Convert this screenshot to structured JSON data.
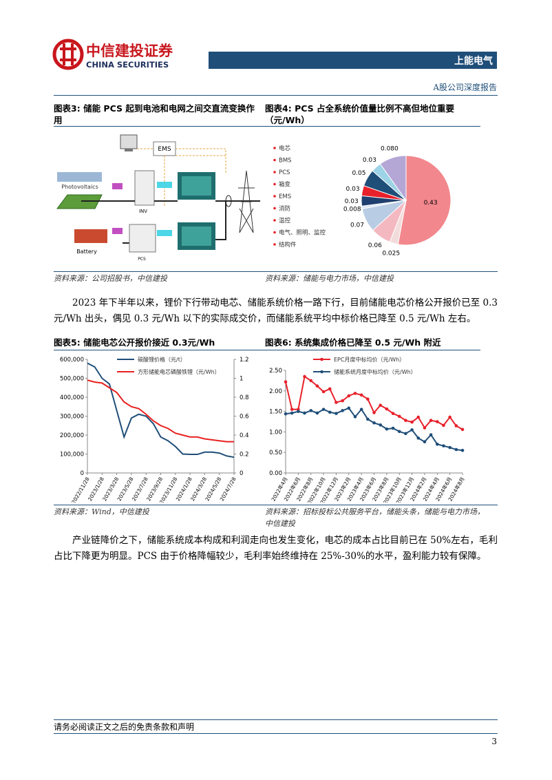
{
  "header": {
    "company": "中信建投证券",
    "company_en": "CHINA SECURITIES",
    "stock": "上能电气",
    "report_type": "A股公司深度报告"
  },
  "diagram": {
    "label": "图表3:",
    "title": "储能 PCS 起到电池和电网之间交直流变换作用",
    "source": "资料来源：公司招股书，中信建投",
    "labels": {
      "ems": "EMS",
      "pv": "Photovoltaics",
      "inv": "INV",
      "battery": "Battery",
      "pcs": "PCS"
    }
  },
  "paragraphs": [
    "2023 年下半年以来，锂价下行带动电芯、储能系统价格一路下行，目前储能电芯价格公开报价已至 0.3 元/Wh 出头，偶见 0.3 元/Wh 以下的实际成交价，而储能系统平均中标价格已降至 0.5 元/Wh 左右。",
    "产业链降价之下，储能系统成本构成和利润走向也发生变化，电芯的成本占比目前已在 50%左右，毛利占比下降更为明显。PCS 由于价格降幅较少，毛利率始终维持在 25%-30%的水平，盈利能力较有保障。"
  ],
  "chart_data": [
    {
      "type": "pie",
      "label": "图表4:",
      "title": "PCS 占全系统价值量比例不高但地位重要（元/Wh）",
      "source": "资料来源：储能与电力市场，中信建投",
      "categories": [
        "电芯",
        "BMS",
        "PCS",
        "箱变",
        "EMS",
        "消防",
        "温控",
        "电气、照明、监控",
        "结构件",
        null
      ],
      "values": [
        0.43,
        0.025,
        0.06,
        0.07,
        0.008,
        0.03,
        0.03,
        0.05,
        0.03,
        0.08
      ],
      "value_labels": [
        "0.43",
        "0.025",
        "0.06",
        "0.07",
        "0.008",
        "0.03",
        "0.03",
        "0.05",
        "0.03",
        "0.080"
      ],
      "colors": [
        "#f2878d",
        "#f2dcdb",
        "#f4b8c0",
        "#b8cce4",
        "#dbe5f1",
        "#1f3f6e",
        "#e8202a",
        "#1f4e79",
        "#9dd3e6",
        "#b4a7d6"
      ]
    },
    {
      "type": "line",
      "label": "图表5:",
      "title": "储能电芯公开报价接近 0.3元/Wh",
      "source": "资料来源：Wind，中信建投",
      "categories": [
        "2022/11/28",
        null,
        "2023/1/28",
        null,
        "2023/3/28",
        null,
        "2023/5/28",
        null,
        "2023/7/28",
        null,
        "2023/9/28",
        null,
        "2023/11/28",
        null,
        "2024/1/28",
        null,
        "2024/3/28",
        null,
        "2024/5/28",
        null,
        "2024/7/28"
      ],
      "series": [
        {
          "name": "碳酸锂价格（元/t）",
          "color": "#1f4e79",
          "axis": "y",
          "values": [
            580000,
            560000,
            500000,
            470000,
            330000,
            190000,
            290000,
            310000,
            300000,
            260000,
            190000,
            170000,
            140000,
            100000,
            98000,
            98000,
            110000,
            110000,
            105000,
            90000,
            83000
          ]
        },
        {
          "name": "方形储能电芯磷酸铁锂（元/Wh）",
          "color": "#e8201f",
          "axis": "y2",
          "values": [
            0.98,
            0.96,
            0.95,
            0.9,
            0.85,
            0.75,
            0.7,
            0.68,
            0.62,
            0.55,
            0.5,
            0.47,
            0.42,
            0.4,
            0.38,
            0.38,
            0.36,
            0.35,
            0.34,
            0.33,
            0.33
          ]
        }
      ],
      "ylim": [
        0,
        600000
      ],
      "yticks": [
        0,
        {
          "value": 100000,
          "label": "100,000"
        },
        {
          "value": 200000,
          "label": "200,000"
        },
        {
          "value": 300000,
          "label": "300,000"
        },
        {
          "value": 400000,
          "label": "400,000"
        },
        {
          "value": 500000,
          "label": "500,000"
        },
        {
          "value": 600000,
          "label": "600,000"
        }
      ],
      "y2lim": [
        0,
        1.2
      ],
      "y2ticks": [
        0,
        0.2,
        0.4,
        0.6,
        0.8,
        1,
        1.2
      ],
      "grid": false,
      "markers": false
    },
    {
      "type": "line",
      "label": "图表6:",
      "title": "系统集成价格已降至 0.5 元/Wh 附近",
      "source": "资料来源：招标投标公共服务平台，储能头条，储能与电力市场，中信建投",
      "categories": [
        "2022年4月",
        null,
        "2022年6月",
        null,
        "2022年8月",
        null,
        "2022年10月",
        null,
        "2022年12月",
        null,
        "2023年2月",
        null,
        "2023年4月",
        null,
        "2023年6月",
        null,
        "2023年8月",
        null,
        "2023年10月",
        null,
        "2023年12月",
        null,
        "2024年2月",
        null,
        "2024年4月",
        null,
        "2024年6月",
        null,
        "2024年8月"
      ],
      "series": [
        {
          "name": "EPC月度中标均价（元/Wh）",
          "color": "#e8202a",
          "axis": "y",
          "values": [
            2.22,
            1.55,
            1.55,
            2.35,
            2.25,
            2.12,
            1.98,
            2.05,
            1.72,
            1.76,
            1.88,
            1.94,
            1.9,
            1.8,
            1.47,
            1.65,
            1.56,
            1.45,
            1.38,
            1.28,
            1.24,
            1.36,
            1.1,
            1.28,
            1.25,
            1.16,
            1.36,
            1.15,
            1.06
          ]
        },
        {
          "name": "储能系统月度中标均价（元/Wh）",
          "color": "#1f4e79",
          "axis": "y",
          "values": [
            1.44,
            1.46,
            1.5,
            1.46,
            1.52,
            1.46,
            1.55,
            1.48,
            1.45,
            1.52,
            1.58,
            1.37,
            1.55,
            1.31,
            1.22,
            1.17,
            1.07,
            1.09,
            1.01,
            0.96,
            1.05,
            0.85,
            0.76,
            0.93,
            0.7,
            0.66,
            0.62,
            0.57,
            0.55
          ]
        }
      ],
      "ylim": [
        0,
        2.5
      ],
      "yticks": [
        {
          "value": 0,
          "label": "0.00"
        },
        {
          "value": 0.5,
          "label": "0.50"
        },
        {
          "value": 1,
          "label": "1.00"
        },
        {
          "value": 1.5,
          "label": "1.50"
        },
        {
          "value": 2,
          "label": "2.00"
        },
        {
          "value": 2.5,
          "label": "2.50"
        }
      ],
      "grid": false,
      "markers": true
    }
  ],
  "footer": {
    "disclaimer": "请务必阅读正文之后的免责条款和声明",
    "page": 3
  }
}
